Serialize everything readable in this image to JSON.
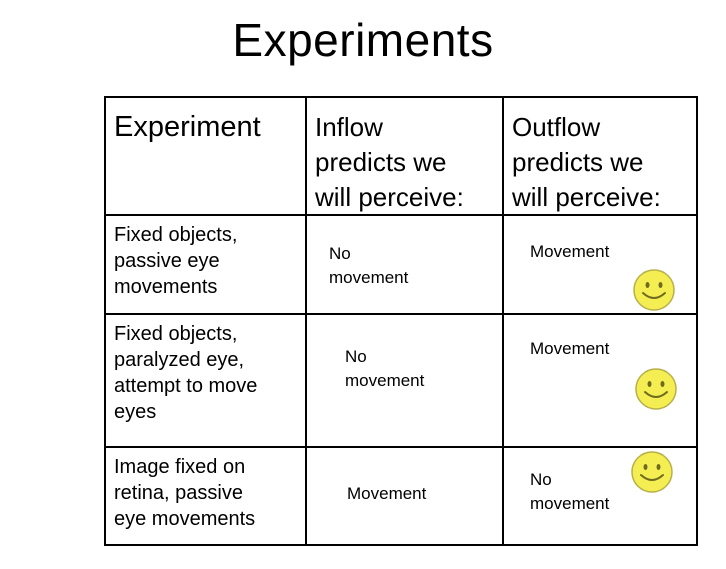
{
  "title": "Experiments",
  "table": {
    "headers": [
      {
        "lines": [
          "Experiment"
        ]
      },
      {
        "lines": [
          "Inflow",
          "predicts we",
          "will perceive:"
        ]
      },
      {
        "lines": [
          "Outflow",
          "predicts we",
          "will perceive:"
        ]
      }
    ],
    "rows": [
      {
        "experiment": [
          "Fixed objects,",
          "passive eye",
          "movements"
        ],
        "inflow": [
          "No",
          "movement"
        ],
        "outflow": [
          "Movement"
        ],
        "outflow_smiley": "smiley-face-icon"
      },
      {
        "experiment": [
          "Fixed objects,",
          "paralyzed eye,",
          "attempt to move",
          "eyes"
        ],
        "inflow": [
          "No",
          "movement"
        ],
        "outflow": [
          "Movement"
        ],
        "outflow_smiley": "smiley-face-icon"
      },
      {
        "experiment": [
          "Image fixed on",
          "retina, passive",
          "eye movements"
        ],
        "inflow": [
          "Movement"
        ],
        "outflow": [
          "No",
          "movement"
        ],
        "outflow_smiley": "smiley-face-icon"
      }
    ]
  },
  "colors": {
    "smiley_fill": "#f4ee52",
    "smiley_stroke": "#b8b04a",
    "smiley_features": "#6f6a1e"
  }
}
